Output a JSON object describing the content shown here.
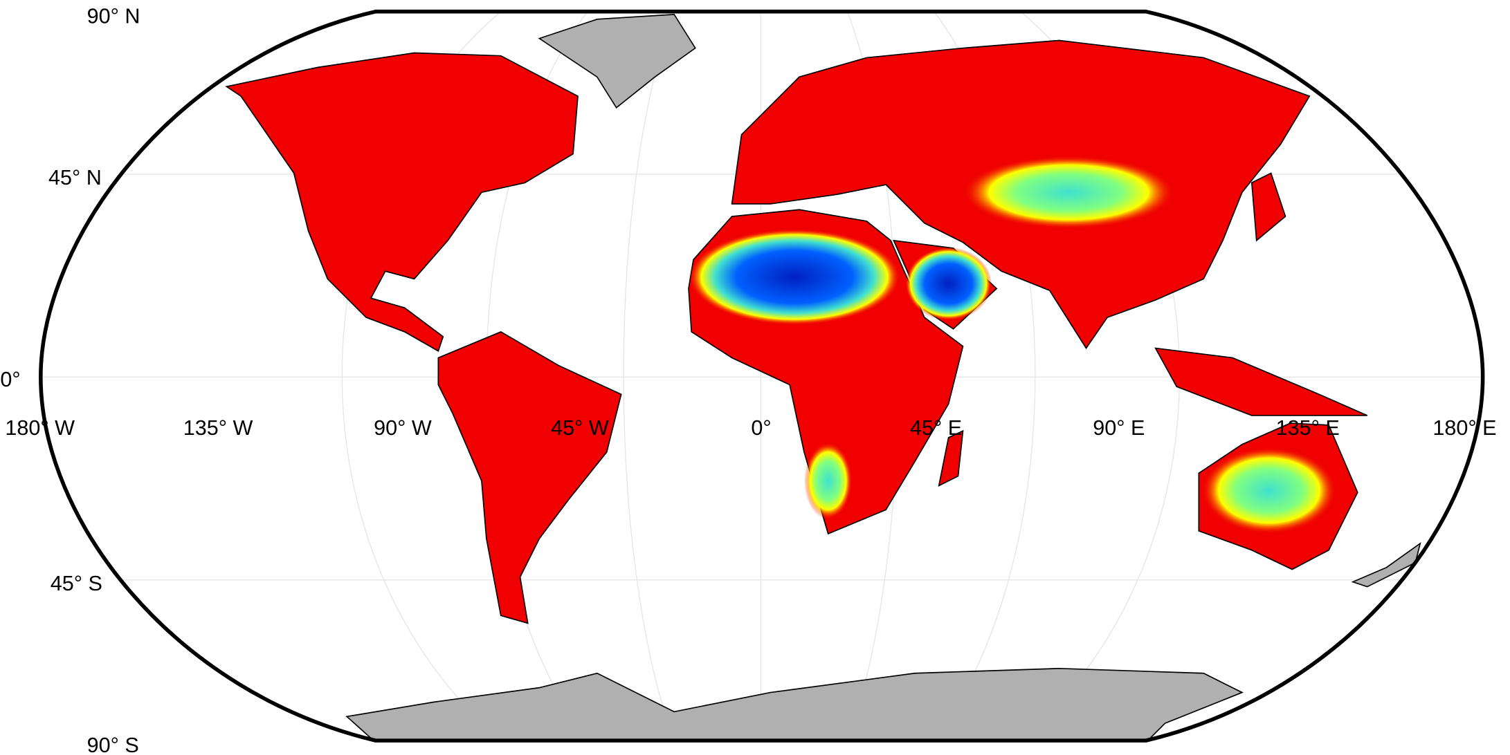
{
  "map": {
    "projection": "Robinson",
    "colors": {
      "high": "#f00000",
      "mid": "#ffff00",
      "midlow": "#40e0d0",
      "low": "#0030d0",
      "no_data": "#b0b0b0",
      "ocean": "#ffffff"
    },
    "latitude_labels": [
      "90° N",
      "45° N",
      "0°",
      "45° S",
      "90° S"
    ],
    "longitude_labels": [
      "180° W",
      "135° W",
      "90° W",
      "45° W",
      "0°",
      "45° E",
      "90° E",
      "135° E",
      "180° E"
    ]
  }
}
